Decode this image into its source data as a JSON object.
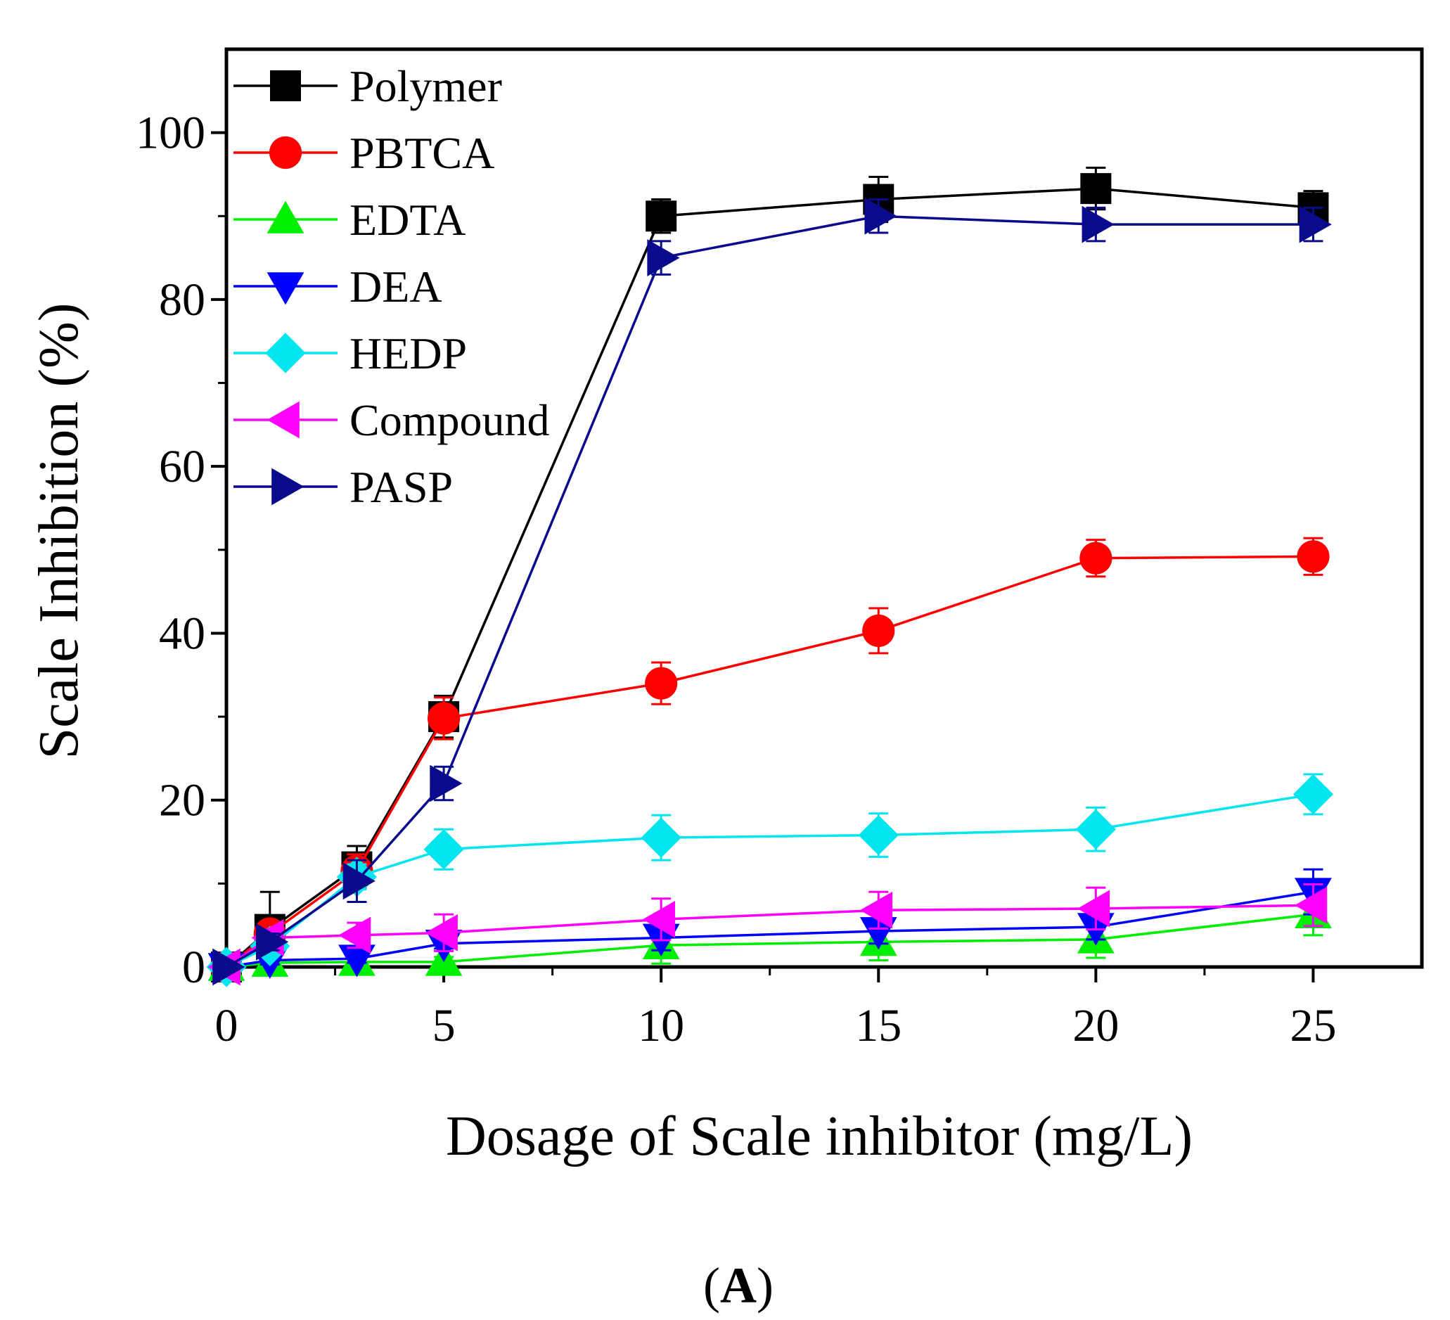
{
  "chart_data": {
    "type": "line",
    "title": "",
    "xlabel": "Dosage of Scale inhibitor (mg/L)",
    "ylabel": "Scale Inhibition (%)",
    "panel_label": {
      "open": "(",
      "letter": "A",
      "close": ")"
    },
    "xlim": [
      0,
      27.5
    ],
    "ylim": [
      0,
      110
    ],
    "x_ticks": [
      0,
      5,
      10,
      15,
      20,
      25
    ],
    "y_ticks": [
      0,
      20,
      40,
      60,
      80,
      100
    ],
    "x_tick_labels": [
      "0",
      "5",
      "10",
      "15",
      "20",
      "25"
    ],
    "y_tick_labels": [
      "0",
      "20",
      "40",
      "60",
      "80",
      "100"
    ],
    "grid": false,
    "legend_position": "top-left",
    "x": [
      0,
      1,
      3,
      5,
      10,
      15,
      20,
      25
    ],
    "series": [
      {
        "name": "Polymer",
        "color": "#000000",
        "marker": "square",
        "values": [
          0,
          4.5,
          12,
          30,
          90,
          92,
          93.3,
          91
        ],
        "errors": [
          0,
          4.5,
          2.5,
          2.5,
          2,
          2.7,
          2.5,
          2
        ]
      },
      {
        "name": "PBTCA",
        "color": "#ff0000",
        "marker": "circle",
        "values": [
          0,
          4,
          11.5,
          29.8,
          34,
          40.3,
          49,
          49.2
        ],
        "errors": [
          0,
          1,
          2,
          2.5,
          2.5,
          2.7,
          2.2,
          2.2
        ]
      },
      {
        "name": "EDTA",
        "color": "#00ee00",
        "marker": "triangle-up",
        "values": [
          0,
          0.5,
          0.6,
          0.6,
          2.6,
          3,
          3.3,
          6.3
        ],
        "errors": [
          0,
          0.5,
          0.5,
          0.6,
          2.2,
          2.2,
          2.2,
          2.5
        ]
      },
      {
        "name": "DEA",
        "color": "#0000ff",
        "marker": "triangle-down",
        "values": [
          0,
          0.8,
          1,
          2.8,
          3.5,
          4.3,
          4.8,
          9
        ],
        "errors": [
          0,
          0.5,
          0.5,
          0.6,
          1.5,
          1.5,
          1.5,
          2.7
        ]
      },
      {
        "name": "HEDP",
        "color": "#00e5ee",
        "marker": "diamond",
        "values": [
          0,
          2.5,
          10.8,
          14.1,
          15.5,
          15.8,
          16.5,
          20.7
        ],
        "errors": [
          0,
          1,
          1.5,
          2.4,
          2.7,
          2.6,
          2.6,
          2.4
        ]
      },
      {
        "name": "Compound",
        "color": "#ff00ff",
        "marker": "triangle-left",
        "values": [
          0,
          3.5,
          3.8,
          4.1,
          5.7,
          6.8,
          7,
          7.4
        ],
        "errors": [
          0,
          1,
          1.5,
          2.2,
          2.5,
          2.2,
          2.5,
          2.5
        ]
      },
      {
        "name": "PASP",
        "color": "#0a0a8c",
        "marker": "triangle-right",
        "values": [
          0,
          3,
          10.3,
          22,
          85,
          90,
          89,
          89
        ],
        "errors": [
          0,
          1,
          2.5,
          2,
          2,
          2,
          2,
          2
        ]
      }
    ]
  }
}
